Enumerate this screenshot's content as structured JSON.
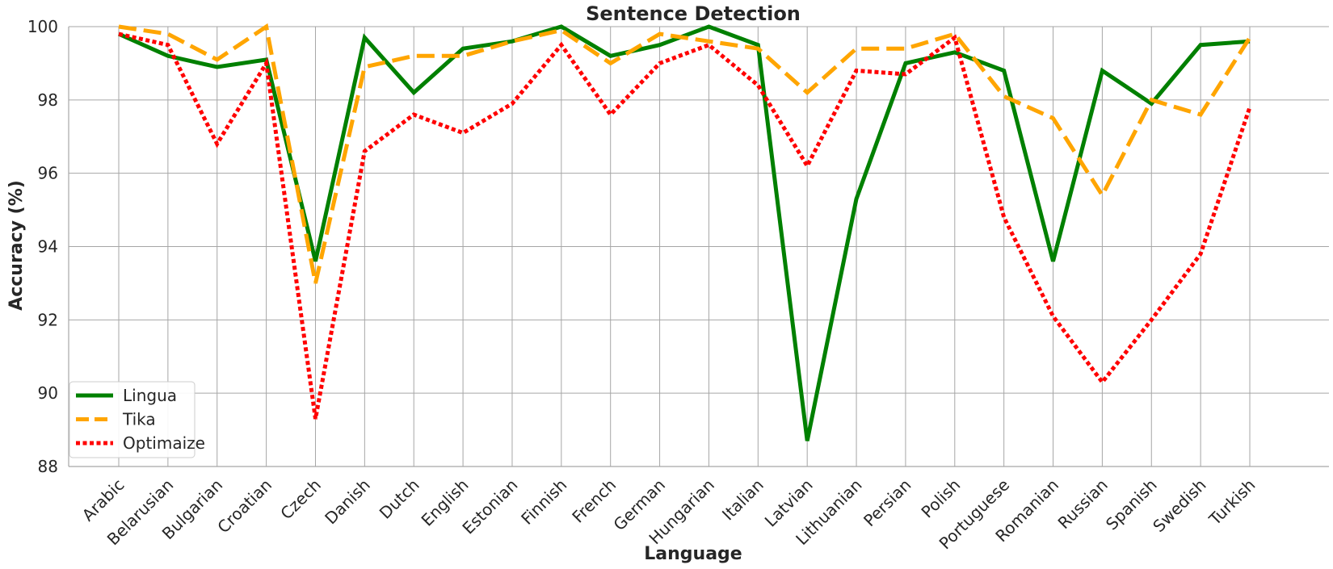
{
  "chart_data": {
    "type": "line",
    "title": "Sentence Detection",
    "xlabel": "Language",
    "ylabel": "Accuracy (%)",
    "ylim": [
      88,
      100
    ],
    "yticks": [
      88,
      90,
      92,
      94,
      96,
      98,
      100
    ],
    "grid": true,
    "legend_position": "bottom-left",
    "categories": [
      "Arabic",
      "Belarusian",
      "Bulgarian",
      "Croatian",
      "Czech",
      "Danish",
      "Dutch",
      "English",
      "Estonian",
      "Finnish",
      "French",
      "German",
      "Hungarian",
      "Italian",
      "Latvian",
      "Lithuanian",
      "Persian",
      "Polish",
      "Portuguese",
      "Romanian",
      "Russian",
      "Spanish",
      "Swedish",
      "Turkish"
    ],
    "series": [
      {
        "name": "Lingua",
        "color": "#008000",
        "line_style": "solid",
        "values": [
          99.8,
          99.2,
          98.9,
          99.1,
          93.6,
          99.7,
          98.2,
          99.4,
          99.6,
          100.0,
          99.2,
          99.5,
          100.0,
          99.5,
          88.7,
          95.3,
          99.0,
          99.3,
          98.8,
          93.6,
          98.8,
          97.9,
          99.5,
          99.6
        ]
      },
      {
        "name": "Tika",
        "color": "#FFA500",
        "line_style": "dashed",
        "values": [
          100.0,
          99.8,
          99.1,
          100.0,
          93.0,
          98.9,
          99.2,
          99.2,
          99.6,
          99.9,
          99.0,
          99.8,
          99.6,
          99.4,
          98.2,
          99.4,
          99.4,
          99.8,
          98.1,
          97.5,
          95.4,
          98.0,
          97.6,
          99.7
        ]
      },
      {
        "name": "Optimaize",
        "color": "#FF0000",
        "line_style": "dotted",
        "values": [
          99.8,
          99.5,
          96.8,
          99.0,
          89.3,
          96.6,
          97.6,
          97.1,
          97.9,
          99.5,
          97.6,
          99.0,
          99.5,
          98.4,
          96.2,
          98.8,
          98.7,
          99.7,
          94.8,
          92.1,
          90.3,
          92.0,
          93.8,
          97.8
        ]
      }
    ]
  }
}
